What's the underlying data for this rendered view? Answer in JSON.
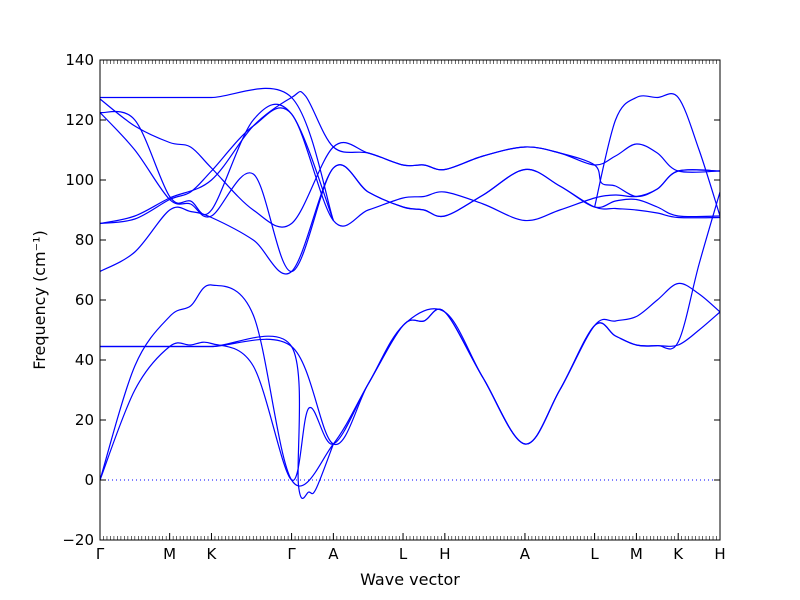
{
  "chart_data": {
    "type": "line",
    "xlabel": "Wave vector",
    "ylabel": "Frequency (cm⁻¹)",
    "ylim": [
      -20,
      140
    ],
    "yticks": [
      -20,
      0,
      20,
      40,
      60,
      80,
      100,
      120,
      140
    ],
    "kpoints": [
      {
        "label": "Γ",
        "x": 0
      },
      {
        "label": "M",
        "x": 1
      },
      {
        "label": "K",
        "x": 1.6
      },
      {
        "label": "Γ",
        "x": 2.75
      },
      {
        "label": "A",
        "x": 3.35
      },
      {
        "label": "L",
        "x": 4.35
      },
      {
        "label": "H",
        "x": 4.95
      },
      {
        "label": "A",
        "x": 6.1
      },
      {
        "label": "L",
        "x": 7.1
      },
      {
        "label": "M",
        "x": 7.7
      },
      {
        "label": "K",
        "x": 8.3
      },
      {
        "label": "H",
        "x": 8.9
      }
    ],
    "xlim": [
      0,
      8.9
    ],
    "zero_line": 0,
    "line_color": "#0000ff",
    "series": [
      {
        "x": [
          0,
          0.5,
          1.0,
          1.3,
          1.6,
          2.2,
          2.75,
          3.35,
          3.85,
          4.35,
          4.65,
          4.95,
          5.5,
          6.1,
          6.6,
          7.1,
          7.4,
          7.7,
          8.0,
          8.3,
          8.6,
          8.9
        ],
        "y": [
          0,
          38,
          54.5,
          58,
          65,
          55,
          0,
          12,
          32,
          51.5,
          53,
          56,
          34,
          12,
          30,
          51.5,
          53,
          54.5,
          60,
          65.5,
          62,
          56
        ]
      },
      {
        "x": [
          0,
          0.5,
          1.0,
          1.3,
          1.6,
          2.2,
          2.75,
          3.0,
          3.35,
          3.85,
          4.35,
          4.65,
          4.95,
          5.5,
          6.1,
          6.6,
          7.1,
          7.4,
          7.7,
          8.0,
          8.3,
          8.6,
          8.9
        ],
        "y": [
          0,
          30,
          44.5,
          45,
          45.5,
          38,
          0,
          24,
          12,
          32,
          51.5,
          53,
          56,
          34,
          12,
          30,
          51.5,
          48,
          45,
          44.8,
          45,
          50,
          56
        ]
      },
      {
        "x": [
          0,
          1.0,
          1.6,
          2.75,
          2.85,
          3.0,
          3.1,
          3.35
        ],
        "y": [
          44.5,
          44.5,
          44.5,
          44.5,
          -2,
          -4,
          -3,
          12
        ]
      },
      {
        "x": [
          0,
          1.0,
          1.6,
          2.75,
          3.35,
          3.85,
          4.35,
          4.95,
          5.5,
          6.1,
          6.6,
          7.1,
          7.4,
          7.7,
          8.0,
          8.3,
          8.6,
          8.9
        ],
        "y": [
          44.5,
          44.5,
          44.5,
          44.5,
          12,
          32,
          51.5,
          56,
          34,
          12,
          30,
          51.5,
          48,
          45,
          44.8,
          46,
          72,
          96
        ]
      },
      {
        "x": [
          0,
          0.5,
          1.0,
          1.3,
          1.6,
          2.2,
          2.75,
          3.35,
          3.85,
          4.35,
          4.65,
          4.95,
          5.5,
          6.1,
          6.6,
          7.1,
          7.4,
          7.7,
          8.0,
          8.3,
          8.9
        ],
        "y": [
          69.5,
          76,
          90,
          89.5,
          87.5,
          80,
          69.5,
          104,
          96,
          91,
          90,
          88,
          95,
          103.5,
          98,
          91,
          90.5,
          90,
          89,
          87.5,
          87.5
        ]
      },
      {
        "x": [
          0,
          0.5,
          1.0,
          1.3,
          1.6,
          2.2,
          2.75,
          3.35,
          3.85,
          4.35,
          4.65,
          4.95,
          5.5,
          6.1,
          6.6,
          7.1,
          7.4,
          7.7,
          8.0,
          8.3,
          8.9
        ],
        "y": [
          122.5,
          110,
          93.5,
          92,
          88,
          102,
          69.5,
          104,
          96,
          91,
          90,
          88,
          95,
          103.5,
          98,
          91,
          93,
          93.5,
          91,
          88,
          88
        ]
      },
      {
        "x": [
          0,
          0.5,
          1.0,
          1.3,
          1.6,
          2.2,
          2.75,
          3.35,
          3.85,
          4.35,
          4.65,
          4.95,
          5.5,
          6.1,
          6.6,
          7.1,
          7.4,
          7.7,
          8.0,
          8.3,
          8.9
        ],
        "y": [
          85.5,
          87,
          93.5,
          96,
          103,
          118,
          122,
          86.5,
          90,
          94,
          94.5,
          96,
          92,
          86.5,
          90,
          94,
          95,
          94.5,
          97,
          103,
          103
        ]
      },
      {
        "x": [
          0,
          0.5,
          1.0,
          1.3,
          1.6,
          2.2,
          2.75,
          3.35
        ],
        "y": [
          122.5,
          120,
          94.5,
          93,
          90,
          120,
          122,
          86.5
        ]
      },
      {
        "x": [
          0,
          0.5,
          1.0,
          1.3,
          1.6,
          2.2,
          2.75,
          3.35,
          3.85,
          4.35,
          4.65,
          4.95,
          5.5,
          6.1,
          6.6,
          7.1,
          7.2,
          7.4,
          7.7,
          8.0,
          8.3,
          8.9
        ],
        "y": [
          127,
          118,
          112.5,
          111,
          104,
          90,
          85.5,
          111,
          109,
          105,
          105,
          103.5,
          108,
          111,
          109,
          105,
          99,
          98,
          94.5,
          97,
          103,
          103
        ]
      },
      {
        "x": [
          0,
          0.5,
          1.0,
          1.6,
          2.2,
          2.75,
          2.95,
          3.35,
          3.85,
          4.35,
          4.65,
          4.95,
          5.5,
          6.1,
          6.6,
          7.1,
          7.4,
          7.7,
          8.0,
          8.3,
          8.9
        ],
        "y": [
          85.5,
          88,
          94,
          100,
          118,
          127.5,
          128,
          111,
          109,
          105,
          105,
          103.5,
          108,
          111,
          109,
          105,
          108,
          112,
          109,
          103,
          103
        ]
      },
      {
        "x": [
          0,
          1.0,
          1.6,
          2.75,
          3.35
        ],
        "y": [
          127.5,
          127.5,
          127.5,
          127.5,
          86.5
        ]
      },
      {
        "x": [
          7.1,
          7.4,
          7.7,
          8.0,
          8.3,
          8.6,
          8.9
        ],
        "y": [
          91,
          120,
          127.5,
          127.5,
          127.5,
          110,
          88
        ]
      }
    ]
  }
}
